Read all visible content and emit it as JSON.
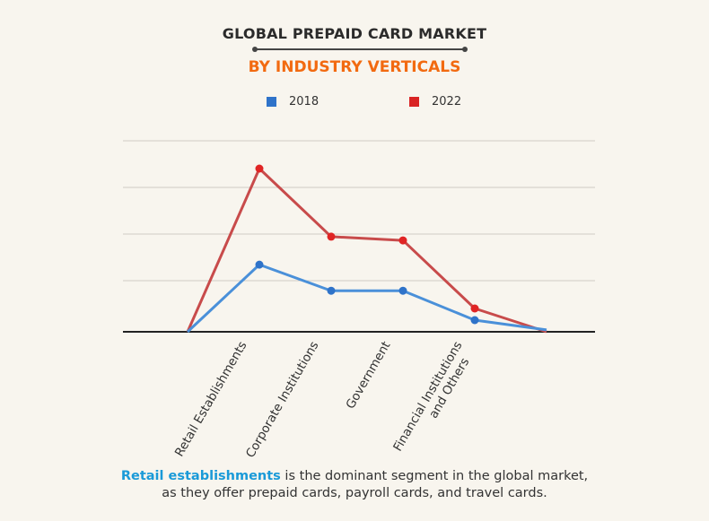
{
  "title": "GLOBAL PREPAID CARD MARKET",
  "subtitle": "BY INDUSTRY VERTICALS",
  "caption": {
    "highlight": "Retail establishments",
    "line1_rest": " is the dominant segment in the global market,",
    "line2": "as they offer prepaid cards, payroll cards, and travel cards."
  },
  "colors": {
    "accent_title": "#f26a10",
    "series_2018": "#4a90d9",
    "series_2022": "#c84b4b",
    "highlight": "#1a9ad8"
  },
  "chart_data": {
    "type": "line",
    "title": "GLOBAL PREPAID CARD MARKET",
    "subtitle": "BY INDUSTRY VERTICALS",
    "categories": [
      "",
      "Retail Establishments",
      "Corporate Institutions",
      "Government",
      "Financial Institutions and Others",
      ""
    ],
    "category_lines": [
      [],
      [
        "Retail Establishments"
      ],
      [
        "Corporate Institutions"
      ],
      [
        "Government"
      ],
      [
        "Financial Institutions",
        "and Others"
      ],
      []
    ],
    "series": [
      {
        "name": "2018",
        "color": "#4a90d9",
        "marker": "#2f73c9",
        "values": [
          0,
          1.44,
          0.88,
          0.88,
          0.25,
          0.04
        ]
      },
      {
        "name": "2022",
        "color": "#c84b4b",
        "marker": "#e02424",
        "values": [
          0,
          3.5,
          2.04,
          1.96,
          0.5,
          0.0
        ]
      }
    ],
    "ylim": [
      0,
      4.1
    ],
    "grid": true,
    "y_tick_labels": false,
    "legend": "top-center",
    "units_note": "values relative to gridline spacing; no numeric axis printed"
  }
}
